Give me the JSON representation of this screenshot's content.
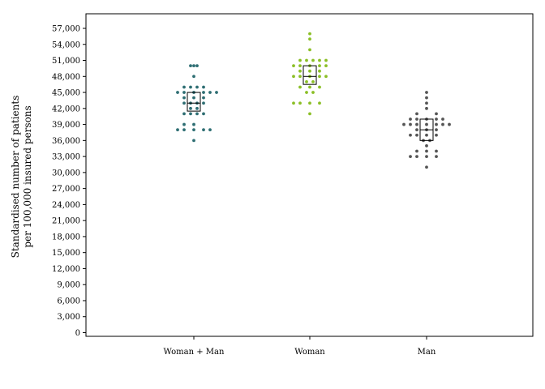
{
  "chart_data": {
    "type": "scatter",
    "subtype": "dot-plot-with-boxes",
    "ylabel_lines": [
      "Standardised number of patients",
      "per 100,000 insured persons"
    ],
    "ylim": [
      0,
      58500
    ],
    "yticks": [
      0,
      3000,
      6000,
      9000,
      12000,
      15000,
      18000,
      21000,
      24000,
      27000,
      30000,
      33000,
      36000,
      39000,
      42000,
      45000,
      48000,
      51000,
      54000,
      57000
    ],
    "ytick_labels": [
      "0",
      "3,000",
      "6,000",
      "9,000",
      "12,000",
      "15,000",
      "18,000",
      "21,000",
      "24,000",
      "27,000",
      "30,000",
      "33,000",
      "36,000",
      "39,000",
      "42,000",
      "45,000",
      "48,000",
      "51,000",
      "54,000",
      "57,000"
    ],
    "categories": [
      "Woman + Man",
      "Woman",
      "Man"
    ],
    "grid": false,
    "series": [
      {
        "category": "Woman + Man",
        "color": "#2e6e73",
        "q1": 41500,
        "median": 43000,
        "q3": 45000,
        "points": [
          [
            0,
            50000
          ],
          [
            -0.4,
            50000
          ],
          [
            0.4,
            50000
          ],
          [
            0,
            48000
          ],
          [
            -0.4,
            46000
          ],
          [
            0.4,
            46000
          ],
          [
            -1.2,
            46000
          ],
          [
            1.2,
            46000
          ],
          [
            -2.0,
            45000
          ],
          [
            -1.2,
            45000
          ],
          [
            0,
            45000
          ],
          [
            1.2,
            45000
          ],
          [
            2.0,
            45000
          ],
          [
            2.8,
            45000
          ],
          [
            -1.2,
            44000
          ],
          [
            1.2,
            44000
          ],
          [
            0,
            44000
          ],
          [
            -0.4,
            43000
          ],
          [
            0.4,
            43000
          ],
          [
            -1.2,
            43000
          ],
          [
            1.2,
            43000
          ],
          [
            -0.4,
            42000
          ],
          [
            0.4,
            42000
          ],
          [
            -0.4,
            41000
          ],
          [
            0.4,
            41000
          ],
          [
            -1.2,
            41000
          ],
          [
            1.2,
            41000
          ],
          [
            0,
            39000
          ],
          [
            -1.2,
            39000
          ],
          [
            -2.0,
            38000
          ],
          [
            -1.2,
            38000
          ],
          [
            0,
            38000
          ],
          [
            1.2,
            38000
          ],
          [
            2.0,
            38000
          ],
          [
            0,
            36000
          ]
        ]
      },
      {
        "category": "Woman",
        "color": "#8bbf26",
        "q1": 46500,
        "median": 48000,
        "q3": 50000,
        "points": [
          [
            0,
            56000
          ],
          [
            0,
            55000
          ],
          [
            0,
            53000
          ],
          [
            -1.2,
            51000
          ],
          [
            -0.4,
            51000
          ],
          [
            0.4,
            51000
          ],
          [
            1.2,
            51000
          ],
          [
            2.0,
            51000
          ],
          [
            -2.0,
            50000
          ],
          [
            -1.2,
            50000
          ],
          [
            0,
            50000
          ],
          [
            1.2,
            50000
          ],
          [
            2.0,
            50000
          ],
          [
            -1.2,
            49000
          ],
          [
            0,
            49000
          ],
          [
            1.2,
            49000
          ],
          [
            -2.0,
            48000
          ],
          [
            -1.2,
            48000
          ],
          [
            0,
            48000
          ],
          [
            1.2,
            48000
          ],
          [
            2.0,
            48000
          ],
          [
            -0.4,
            47000
          ],
          [
            0.4,
            47000
          ],
          [
            -1.2,
            46000
          ],
          [
            0,
            46000
          ],
          [
            1.2,
            46000
          ],
          [
            -0.4,
            45000
          ],
          [
            0.4,
            45000
          ],
          [
            -2.0,
            43000
          ],
          [
            -1.2,
            43000
          ],
          [
            0,
            43000
          ],
          [
            1.2,
            43000
          ],
          [
            0,
            41000
          ]
        ]
      },
      {
        "category": "Man",
        "color": "#555555",
        "q1": 36000,
        "median": 38000,
        "q3": 40000,
        "points": [
          [
            0,
            45000
          ],
          [
            0,
            44000
          ],
          [
            0,
            43000
          ],
          [
            0,
            42000
          ],
          [
            -1.2,
            41000
          ],
          [
            1.2,
            41000
          ],
          [
            -2.0,
            40000
          ],
          [
            -1.2,
            40000
          ],
          [
            0,
            40000
          ],
          [
            1.2,
            40000
          ],
          [
            2.0,
            40000
          ],
          [
            -2.8,
            39000
          ],
          [
            -2.0,
            39000
          ],
          [
            -1.2,
            39000
          ],
          [
            0,
            39000
          ],
          [
            1.2,
            39000
          ],
          [
            2.0,
            39000
          ],
          [
            2.8,
            39000
          ],
          [
            -1.2,
            38000
          ],
          [
            0,
            38000
          ],
          [
            1.2,
            38000
          ],
          [
            -2.0,
            37000
          ],
          [
            -1.2,
            37000
          ],
          [
            0,
            37000
          ],
          [
            1.2,
            37000
          ],
          [
            -0.4,
            36000
          ],
          [
            0.4,
            36000
          ],
          [
            0,
            35000
          ],
          [
            -1.2,
            34000
          ],
          [
            0,
            34000
          ],
          [
            1.2,
            34000
          ],
          [
            -2.0,
            33000
          ],
          [
            -1.2,
            33000
          ],
          [
            0,
            33000
          ],
          [
            1.2,
            33000
          ],
          [
            0,
            31000
          ]
        ]
      }
    ]
  }
}
